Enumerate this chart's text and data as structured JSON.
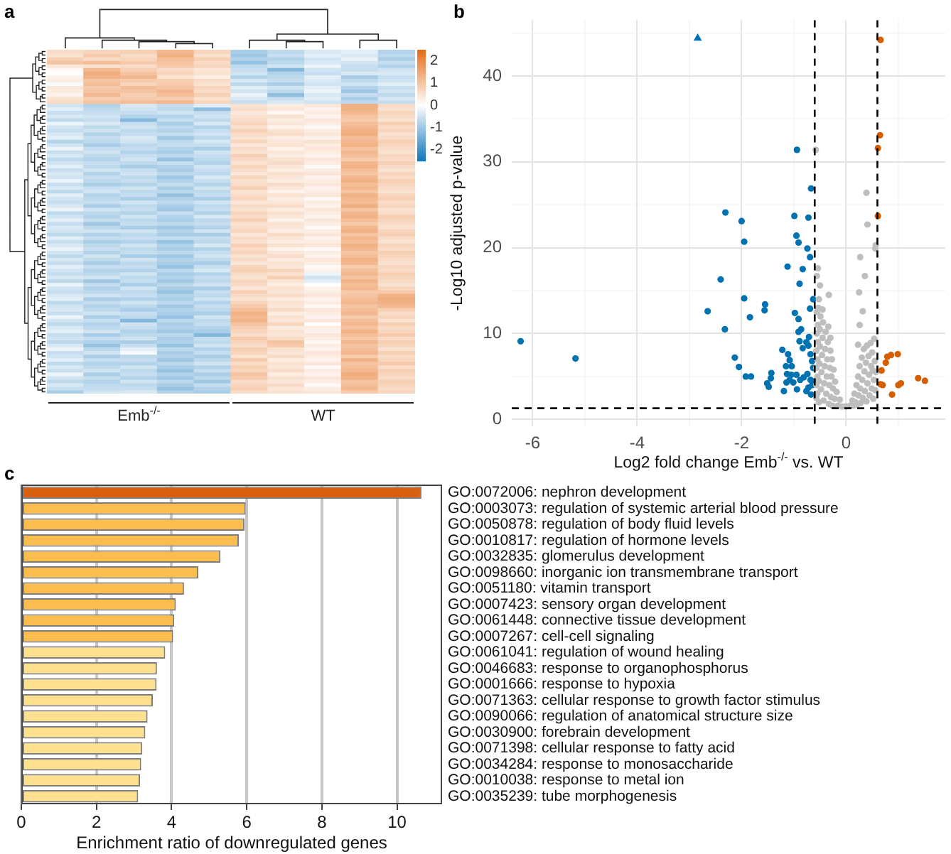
{
  "chart_data": [
    {
      "type": "heatmap",
      "title": "a",
      "categories": [
        null,
        null,
        "Emb$^{-/-}$",
        null,
        null,
        null,
        null,
        "WT",
        null,
        null
      ],
      "y_categories": [
        null,
        null,
        null,
        null,
        null,
        null,
        null,
        null,
        null,
        null,
        null,
        null,
        null,
        null,
        null,
        null,
        null,
        null,
        null,
        null,
        null,
        null,
        null,
        null,
        null,
        null,
        null,
        null,
        null,
        null,
        null,
        null,
        null,
        null,
        null,
        null,
        null,
        null,
        null,
        null,
        null,
        null,
        null,
        null,
        null,
        null,
        null,
        null,
        null,
        null,
        null,
        null,
        null,
        null,
        null,
        null,
        null,
        null,
        null,
        null,
        null,
        null,
        null,
        null,
        null,
        null,
        null,
        null,
        null,
        null,
        null,
        null,
        null,
        null,
        null,
        null,
        null,
        null,
        null,
        null,
        null,
        null,
        null,
        null,
        null,
        null,
        null,
        null,
        null,
        null,
        null,
        null,
        null,
        null,
        null,
        null
      ],
      "clim": [
        -2.5,
        2.5
      ],
      "cticks": [
        -2,
        -1,
        0,
        1,
        2
      ],
      "cells": [
        [
          0.6,
          0.7,
          0.8,
          1.2,
          0.7,
          -0.9,
          -0.7,
          -0.4,
          -0.3,
          -0.8
        ],
        [
          0.5,
          0.9,
          0.6,
          1.3,
          0.5,
          -1.0,
          -0.6,
          -0.3,
          -0.4,
          -0.7
        ],
        [
          0.8,
          0.6,
          0.7,
          1.1,
          0.8,
          -0.8,
          -0.8,
          -0.5,
          -0.2,
          -0.9
        ],
        [
          1.0,
          1.1,
          0.9,
          1.0,
          0.6,
          -1.1,
          -0.7,
          -0.4,
          -0.5,
          -0.6
        ],
        [
          0.4,
          0.5,
          0.6,
          0.9,
          0.7,
          -0.7,
          -0.5,
          -0.2,
          -0.6,
          -0.8
        ],
        [
          0.1,
          1.2,
          0.8,
          0.6,
          0.4,
          -0.6,
          -1.3,
          -0.5,
          -0.6,
          -0.5
        ],
        [
          0.0,
          1.4,
          1.0,
          0.7,
          0.5,
          -0.5,
          -0.8,
          -0.6,
          -0.4,
          -0.4
        ],
        [
          0.2,
          1.3,
          1.2,
          0.5,
          0.3,
          -0.8,
          -0.7,
          -0.3,
          -0.9,
          -0.6
        ],
        [
          0.3,
          1.0,
          0.9,
          0.8,
          0.6,
          -0.4,
          -0.6,
          -0.4,
          -0.7,
          -0.5
        ],
        [
          -0.1,
          1.1,
          0.7,
          0.9,
          0.5,
          -0.7,
          -0.9,
          -0.5,
          -0.5,
          -0.3
        ],
        [
          0.4,
          0.9,
          1.1,
          1.0,
          0.7,
          -0.3,
          -0.5,
          -0.3,
          -0.8,
          -0.6
        ],
        [
          0.3,
          1.0,
          1.0,
          1.2,
          0.6,
          -0.5,
          -0.7,
          -0.2,
          -1.0,
          -0.5
        ],
        [
          0.2,
          1.2,
          0.8,
          1.1,
          0.8,
          -0.2,
          -1.2,
          -0.4,
          -0.6,
          -0.7
        ],
        [
          0.5,
          0.8,
          0.9,
          0.8,
          0.5,
          -0.4,
          -0.6,
          -0.3,
          -0.9,
          -0.4
        ],
        [
          0.6,
          1.0,
          1.1,
          1.2,
          0.7,
          -0.6,
          -0.4,
          -0.5,
          -0.7,
          -0.6
        ],
        [
          -0.5,
          -0.8,
          -0.4,
          -0.6,
          -0.3,
          0.5,
          0.3,
          0.4,
          1.4,
          0.6
        ],
        [
          -0.3,
          -0.7,
          -0.5,
          -0.7,
          -1.2,
          0.6,
          0.4,
          0.2,
          1.3,
          0.5
        ],
        [
          -0.6,
          -0.6,
          -0.6,
          -0.5,
          -0.6,
          0.4,
          0.1,
          0.3,
          1.2,
          0.7
        ],
        [
          -0.4,
          -0.5,
          -0.8,
          -0.8,
          -0.5,
          0.5,
          0.5,
          0.2,
          1.0,
          0.6
        ],
        [
          -0.7,
          -0.6,
          -1.3,
          -0.6,
          -0.7,
          0.6,
          0.3,
          0.4,
          0.9,
          0.5
        ],
        [
          -0.2,
          -0.4,
          -0.6,
          -0.9,
          -0.4,
          0.7,
          0.4,
          0.3,
          1.1,
          0.8
        ],
        [
          -0.5,
          -0.7,
          -0.5,
          -0.7,
          -0.8,
          0.5,
          0.2,
          0.1,
          1.2,
          0.6
        ],
        [
          -0.6,
          -0.5,
          -0.7,
          -0.8,
          -0.6,
          0.8,
          0.5,
          0.3,
          1.3,
          0.7
        ],
        [
          -0.4,
          -0.8,
          -0.6,
          -0.6,
          -0.5,
          0.6,
          0.6,
          0.4,
          1.4,
          0.5
        ],
        [
          -0.3,
          -0.6,
          -0.4,
          -1.0,
          -0.7,
          0.5,
          0.3,
          0.2,
          1.1,
          0.6
        ],
        [
          -0.8,
          -0.7,
          -0.5,
          -0.7,
          -0.4,
          0.7,
          0.4,
          0.5,
          1.2,
          0.8
        ],
        [
          -0.5,
          -0.9,
          -0.7,
          -0.6,
          -0.6,
          0.4,
          0.5,
          0.3,
          1.3,
          0.7
        ],
        [
          -0.2,
          -0.6,
          -0.6,
          -0.8,
          -0.9,
          0.6,
          0.2,
          0.4,
          1.0,
          0.6
        ],
        [
          -0.6,
          -0.5,
          -0.8,
          -0.9,
          -0.5,
          0.5,
          0.4,
          0.3,
          1.2,
          0.5
        ],
        [
          -0.4,
          -0.7,
          -0.6,
          -0.7,
          -0.6,
          0.8,
          0.3,
          0.2,
          1.1,
          0.7
        ],
        [
          -0.7,
          -0.8,
          -0.5,
          -1.1,
          -0.7,
          0.6,
          0.5,
          0.4,
          0.9,
          0.6
        ],
        [
          -0.5,
          -0.6,
          -0.7,
          -0.6,
          -0.8,
          0.5,
          0.6,
          0.3,
          1.2,
          0.8
        ],
        [
          -0.3,
          -0.7,
          -0.9,
          -0.8,
          -0.5,
          0.7,
          0.4,
          0.1,
          1.3,
          0.6
        ],
        [
          -0.6,
          -0.5,
          -0.6,
          -0.9,
          -0.6,
          0.6,
          0.3,
          0.3,
          1.1,
          0.5
        ],
        [
          -0.4,
          -0.8,
          -0.5,
          -0.7,
          -0.7,
          0.4,
          0.5,
          0.4,
          1.0,
          0.7
        ],
        [
          -0.5,
          -0.6,
          -0.7,
          -1.0,
          -0.4,
          0.7,
          0.4,
          0.2,
          1.2,
          0.6
        ],
        [
          -0.2,
          -0.7,
          -0.6,
          -0.8,
          -0.6,
          0.5,
          0.3,
          0.3,
          1.3,
          0.8
        ],
        [
          -0.6,
          -0.9,
          -0.8,
          -0.6,
          -0.8,
          0.6,
          0.6,
          0.4,
          1.1,
          0.7
        ],
        [
          -0.4,
          -0.6,
          -0.5,
          -0.9,
          -0.5,
          0.8,
          0.4,
          0.2,
          1.2,
          0.6
        ],
        [
          -0.7,
          -0.5,
          -0.7,
          -0.7,
          -0.7,
          0.5,
          0.2,
          0.3,
          1.0,
          0.5
        ],
        [
          -0.3,
          -0.8,
          -0.6,
          -1.1,
          -0.6,
          0.6,
          0.5,
          0.4,
          1.3,
          0.7
        ],
        [
          -0.5,
          -0.7,
          -0.9,
          -0.8,
          -0.9,
          0.7,
          0.3,
          0.1,
          1.2,
          0.8
        ],
        [
          -0.6,
          -0.6,
          -0.5,
          -0.7,
          -0.5,
          0.4,
          0.4,
          0.3,
          1.1,
          0.6
        ],
        [
          -0.4,
          -0.9,
          -0.7,
          -0.9,
          -0.7,
          0.6,
          0.6,
          0.2,
          1.4,
          0.7
        ],
        [
          -0.2,
          -0.5,
          -0.6,
          -1.0,
          -0.6,
          0.5,
          0.3,
          0.4,
          1.0,
          0.5
        ],
        [
          -0.7,
          -0.7,
          -0.8,
          -0.6,
          -0.8,
          0.7,
          0.5,
          0.3,
          1.2,
          0.6
        ],
        [
          -0.5,
          -0.8,
          -0.5,
          -0.8,
          -0.4,
          0.6,
          0.4,
          0.2,
          1.3,
          0.8
        ],
        [
          -0.3,
          -0.6,
          -0.7,
          -0.9,
          -0.7,
          0.8,
          0.2,
          0.4,
          1.1,
          0.7
        ],
        [
          -0.6,
          -1.0,
          -0.6,
          -0.7,
          -0.6,
          0.5,
          0.5,
          0.3,
          0.9,
          0.6
        ],
        [
          -0.4,
          -0.7,
          -0.9,
          -1.0,
          -0.8,
          0.6,
          0.4,
          0.1,
          1.2,
          0.5
        ],
        [
          -0.5,
          -0.5,
          -0.5,
          -0.8,
          -0.5,
          0.7,
          0.3,
          0.3,
          1.3,
          0.7
        ],
        [
          -0.7,
          -0.8,
          -0.7,
          -0.9,
          -0.9,
          0.4,
          0.6,
          0.4,
          1.0,
          0.8
        ],
        [
          -0.3,
          -0.6,
          -0.6,
          -0.6,
          -0.6,
          0.6,
          0.4,
          0.2,
          1.2,
          0.6
        ],
        [
          -0.6,
          -0.9,
          -0.8,
          -1.1,
          -0.7,
          0.5,
          0.3,
          0.3,
          1.1,
          0.5
        ],
        [
          -0.4,
          -0.7,
          -0.5,
          -0.8,
          -0.4,
          0.8,
          0.5,
          0.4,
          1.3,
          0.7
        ],
        [
          -0.2,
          -0.6,
          -0.7,
          -0.9,
          -0.8,
          0.6,
          0.2,
          0.1,
          1.2,
          0.6
        ],
        [
          -0.5,
          -0.8,
          -0.6,
          -0.7,
          -0.6,
          0.7,
          0.4,
          0.3,
          1.0,
          0.8
        ],
        [
          -0.7,
          -0.5,
          -0.9,
          -1.0,
          -0.5,
          0.5,
          0.6,
          0.2,
          1.1,
          0.7
        ],
        [
          -0.4,
          -0.7,
          -0.5,
          -0.8,
          -0.7,
          0.6,
          0.3,
          0.4,
          1.3,
          0.6
        ],
        [
          -0.6,
          -0.9,
          -0.7,
          -0.9,
          -0.9,
          0.4,
          0.5,
          0.3,
          1.2,
          0.5
        ],
        [
          -0.3,
          -0.6,
          -0.6,
          -1.1,
          -0.6,
          0.7,
          0.4,
          0.1,
          0.9,
          0.7
        ],
        [
          -0.5,
          -0.8,
          -0.8,
          -0.7,
          -0.4,
          0.8,
          0.7,
          0.2,
          1.1,
          0.6
        ],
        [
          -0.6,
          -0.7,
          -0.5,
          -0.9,
          -0.8,
          0.6,
          0.5,
          -0.2,
          1.2,
          0.8
        ],
        [
          -0.4,
          -0.5,
          -0.7,
          -0.8,
          -0.6,
          0.5,
          0.8,
          -0.5,
          1.0,
          0.7
        ],
        [
          -0.7,
          -1.0,
          -0.6,
          -1.0,
          -0.7,
          0.7,
          0.4,
          -0.3,
          1.3,
          0.6
        ],
        [
          -0.2,
          -0.6,
          -0.9,
          -0.7,
          -0.5,
          0.6,
          0.3,
          0.0,
          1.1,
          0.5
        ],
        [
          -0.5,
          -0.8,
          -0.5,
          -0.9,
          -0.9,
          0.4,
          0.5,
          0.2,
          1.2,
          0.7
        ],
        [
          -0.6,
          -0.7,
          -0.7,
          -1.1,
          -0.6,
          0.8,
          0.4,
          0.3,
          0.9,
          0.9
        ],
        [
          -0.4,
          -0.5,
          -0.6,
          -0.8,
          -0.7,
          0.6,
          0.6,
          0.4,
          1.0,
          1.3
        ],
        [
          -0.3,
          -0.9,
          -0.8,
          -0.9,
          -0.5,
          0.5,
          0.3,
          0.2,
          1.1,
          1.4
        ],
        [
          -0.7,
          -0.6,
          -0.5,
          -0.7,
          -0.8,
          0.7,
          0.5,
          0.3,
          1.2,
          1.3
        ],
        [
          -0.5,
          -0.8,
          -0.7,
          -1.0,
          -0.6,
          0.9,
          0.4,
          0.1,
          1.0,
          1.2
        ],
        [
          -0.4,
          -0.7,
          -0.9,
          -0.8,
          -0.7,
          1.1,
          0.6,
          0.4,
          1.1,
          0.8
        ],
        [
          -0.6,
          -0.5,
          -0.6,
          -0.9,
          -0.9,
          1.3,
          0.3,
          0.3,
          1.2,
          0.6
        ],
        [
          -0.2,
          -0.9,
          -0.7,
          -1.1,
          -0.5,
          1.2,
          0.5,
          0.2,
          0.9,
          0.7
        ],
        [
          -0.5,
          -0.6,
          -1.3,
          -0.7,
          -0.7,
          1.3,
          0.4,
          0.4,
          1.1,
          0.5
        ],
        [
          -0.7,
          -0.8,
          -0.5,
          -0.9,
          -0.6,
          1.0,
          0.7,
          0.0,
          1.2,
          0.8
        ],
        [
          -0.4,
          -0.7,
          -0.6,
          -0.8,
          -0.8,
          0.8,
          0.3,
          0.3,
          1.0,
          0.6
        ],
        [
          -0.3,
          -0.5,
          -0.8,
          -1.0,
          -0.9,
          0.7,
          0.5,
          0.2,
          1.3,
          0.7
        ],
        [
          -0.6,
          -0.9,
          -0.7,
          -0.7,
          -1.3,
          0.6,
          0.4,
          0.4,
          1.1,
          0.9
        ],
        [
          -0.5,
          -0.6,
          -0.5,
          -0.9,
          -0.6,
          0.9,
          0.6,
          0.3,
          0.9,
          0.6
        ],
        [
          -0.7,
          -0.8,
          -0.9,
          -0.8,
          -0.7,
          0.7,
          1.0,
          0.1,
          1.2,
          0.8
        ],
        [
          -0.4,
          -1.1,
          -0.6,
          -1.1,
          -0.5,
          0.6,
          0.9,
          0.3,
          1.0,
          0.7
        ],
        [
          -0.2,
          -0.7,
          -0.3,
          -0.7,
          -0.8,
          0.8,
          0.5,
          0.2,
          1.1,
          0.5
        ],
        [
          -0.6,
          -0.5,
          -0.1,
          -0.9,
          -0.6,
          0.7,
          0.4,
          0.4,
          1.2,
          0.8
        ],
        [
          -0.5,
          -0.9,
          -0.7,
          -0.8,
          -0.9,
          0.5,
          0.6,
          0.3,
          0.9,
          0.6
        ],
        [
          -0.3,
          -0.6,
          -0.6,
          -1.0,
          -0.7,
          0.9,
          0.3,
          0.2,
          1.3,
          0.7
        ],
        [
          -0.7,
          -0.8,
          -0.8,
          -0.7,
          -0.5,
          0.6,
          0.5,
          0.4,
          1.0,
          0.9
        ],
        [
          -0.4,
          -0.7,
          -0.5,
          -0.9,
          -0.8,
          0.8,
          0.4,
          0.1,
          1.1,
          0.6
        ],
        [
          -0.6,
          -0.5,
          -0.7,
          -1.1,
          -0.6,
          0.7,
          0.6,
          0.3,
          1.2,
          0.8
        ],
        [
          -0.2,
          -0.9,
          -0.6,
          -0.8,
          -0.9,
          1.0,
          0.3,
          0.2,
          1.4,
          0.7
        ],
        [
          -0.5,
          -0.6,
          -0.8,
          -1.0,
          -0.7,
          0.9,
          0.5,
          0.4,
          1.3,
          0.6
        ],
        [
          -0.7,
          -0.8,
          -0.5,
          -0.7,
          -1.0,
          0.6,
          0.4,
          0.3,
          1.0,
          0.8
        ],
        [
          -0.4,
          -0.7,
          -0.7,
          -0.9,
          -0.6,
          0.7,
          0.6,
          0.1,
          1.1,
          0.7
        ],
        [
          -0.6,
          -0.6,
          -0.6,
          -1.1,
          -0.8,
          0.8,
          0.4,
          0.3,
          1.2,
          0.6
        ],
        [
          -0.9,
          -0.5,
          -0.4,
          -0.8,
          -0.9,
          0.6,
          0.5,
          0.4,
          0.9,
          0.7
        ]
      ]
    },
    {
      "type": "scatter",
      "title": "b",
      "xlabel": "Log2 fold change Emb$^{-/-}$ vs. WT",
      "ylabel": "-Log10 adjusted p-value",
      "xlim": [
        -6.4,
        1.9
      ],
      "ylim": [
        -0.8,
        46.5
      ],
      "xticks": [
        -6,
        {
          "value": -5,
          "label": null
        },
        -4,
        {
          "value": -3,
          "label": null
        },
        -2,
        {
          "value": -1,
          "label": null
        },
        0,
        {
          "value": 1,
          "label": null
        }
      ],
      "yticks": [
        0,
        {
          "value": 5,
          "label": null
        },
        10,
        {
          "value": 15,
          "label": null
        },
        20,
        {
          "value": 25,
          "label": null
        },
        30,
        {
          "value": 35,
          "label": null
        },
        40,
        {
          "value": 45,
          "label": null
        }
      ],
      "grid": true,
      "marker": "circle",
      "ref_lines": [
        {
          "axis": "x",
          "value": -0.6,
          "line_style": "dashed"
        },
        {
          "axis": "x",
          "value": 0.6,
          "line_style": "dashed"
        },
        {
          "axis": "y",
          "value": 1.3,
          "line_style": "dashed"
        }
      ],
      "series": [
        {
          "color": "#bebebe",
          "x": [
            -0.57,
            -0.57,
            -0.57,
            -0.57,
            -0.56,
            -0.56,
            -0.55,
            -0.55,
            -0.55,
            -0.54,
            -0.54,
            -0.53,
            -0.52,
            -0.52,
            -0.51,
            -0.5,
            -0.5,
            -0.49,
            -0.48,
            -0.47,
            -0.46,
            -0.45,
            -0.44,
            -0.43,
            -0.42,
            -0.41,
            -0.4,
            -0.39,
            -0.38,
            -0.37,
            -0.36,
            -0.35,
            -0.34,
            -0.33,
            -0.32,
            -0.31,
            -0.3,
            -0.29,
            -0.28,
            -0.27,
            -0.26,
            -0.25,
            -0.24,
            -0.22,
            -0.21,
            -0.18,
            -0.16,
            -0.12,
            -0.08,
            0,
            0.08,
            -0.58,
            -0.54,
            -0.56,
            -0.5,
            -0.33,
            -0.52,
            -0.45,
            -0.3,
            0.12,
            0.14,
            0.16,
            0.18,
            0.2,
            0.21,
            0.23,
            0.24,
            0.26,
            0.27,
            0.28,
            0.3,
            0.31,
            0.32,
            0.34,
            0.35,
            0.36,
            0.38,
            0.39,
            0.4,
            0.41,
            0.43,
            0.44,
            0.45,
            0.47,
            0.48,
            0.49,
            0.5,
            0.51,
            0.52,
            0.53,
            0.54,
            0.55,
            0.56,
            0.57,
            0.39,
            0.41,
            0.27,
            0.36,
            0.25,
            0.32,
            0.56,
            0.26,
            0.23,
            0.57
          ],
          "values": [
            2.5,
            4,
            6,
            8,
            10,
            12.5,
            3,
            5,
            7,
            9,
            11,
            13,
            2,
            4.5,
            6.5,
            8.5,
            10.5,
            12,
            3.5,
            5.5,
            7.5,
            9.5,
            11.3,
            2.2,
            4.2,
            6.2,
            8.2,
            10.2,
            3,
            5,
            7,
            9,
            10.8,
            1.8,
            4,
            6,
            8,
            2.6,
            5,
            7,
            1.6,
            3.6,
            5.8,
            2.4,
            4.4,
            3.2,
            1.6,
            2.3,
            1.5,
            1.5,
            1.6,
            31.4,
            17.6,
            16.7,
            15.6,
            14.5,
            14,
            12.8,
            9.5,
            2.2,
            1.6,
            3,
            2,
            4,
            1.7,
            5,
            2.8,
            6.2,
            3.6,
            1.9,
            7.2,
            4.6,
            2.5,
            8.2,
            5.6,
            3.3,
            6.6,
            2.1,
            8.6,
            4.2,
            7.4,
            5.2,
            2.8,
            8.9,
            6.2,
            3.6,
            7.8,
            5.7,
            2.4,
            4.6,
            9.4,
            6.8,
            3.4,
            5.5,
            26.4,
            22.7,
            18.9,
            16.7,
            14.8,
            12.6,
            19.9,
            11,
            8.7,
            20.3
          ]
        },
        {
          "color": "#0072b2",
          "x": [
            -6.23,
            -5.18,
            -2.31,
            -2,
            -1.95,
            -2.4,
            -2.65,
            -2.32,
            -1.95,
            -1.84,
            -1.55,
            -1.56,
            -2.13,
            -2.05,
            -1.92,
            -1.82,
            -1.51,
            -1.48,
            -1.43,
            -1.44,
            -1.19,
            -1.22,
            -1.12,
            -0.99,
            -0.95,
            -0.91,
            -0.94,
            -0.67,
            -0.72,
            -0.74,
            -0.69,
            -0.83,
            -0.89,
            -0.63,
            -0.98,
            -0.91,
            -0.86,
            -0.91,
            -0.69,
            -0.71,
            -0.89,
            -0.83,
            -0.76,
            -0.72,
            -0.68,
            -1.11,
            -1.08,
            -1.15,
            -1.04,
            -1.13,
            -1.05,
            -1.08,
            -1.14,
            -0.95,
            -0.88,
            -0.81,
            -0.74,
            -0.68,
            -0.65,
            -0.72,
            -0.76,
            -0.67,
            -0.63,
            -0.65,
            -0.62,
            -1.01,
            -0.94
          ],
          "values": [
            9.1,
            7.1,
            24.1,
            23.1,
            20.7,
            16.3,
            12.6,
            10.5,
            14.1,
            11.9,
            13.4,
            12.7,
            7.2,
            6.1,
            5,
            5,
            4.2,
            3.8,
            5.4,
            4.8,
            3.3,
            8.1,
            17.8,
            23.7,
            21.4,
            20.6,
            31.4,
            26.9,
            23.5,
            19.9,
            18.9,
            17.5,
            15.8,
            14,
            12.4,
            11.7,
            10.5,
            10.2,
            12.9,
            9.6,
            9.1,
            8.3,
            9,
            8.6,
            7.6,
            7.6,
            6.9,
            6.2,
            6.2,
            5.3,
            5.2,
            4.6,
            4.3,
            5.2,
            4.6,
            4.9,
            5.3,
            4.6,
            4,
            3.7,
            3.3,
            2.9,
            6,
            6.8,
            4.4,
            4.3,
            3.5
          ]
        },
        {
          "color": "#d55e00",
          "x": [
            0.66,
            0.65,
            0.61,
            0.61,
            0.68,
            0.66,
            0.7,
            0.76,
            0.79,
            0.86,
            0.99,
            0.88,
            1,
            1.05,
            1.38,
            1.51
          ],
          "values": [
            44.2,
            33.1,
            31.6,
            23.7,
            5.7,
            4.1,
            4,
            6.6,
            7.3,
            7.5,
            7.6,
            2.9,
            4,
            4.2,
            4.8,
            4.5
          ]
        },
        {
          "color": "#0072b2",
          "marker": "triangle",
          "x": [
            -2.84
          ],
          "values": [
            44.4
          ]
        }
      ]
    },
    {
      "type": "bar",
      "title": "c",
      "orientation": "horizontal",
      "xlabel": "Enrichment ratio of downregulated genes",
      "xlim": [
        0,
        11.2
      ],
      "xticks": [
        0,
        2,
        4,
        6,
        8,
        10
      ],
      "grid": "x",
      "categories": [
        "GO:0072006: nephron development",
        "GO:0003073: regulation of systemic arterial blood pressure",
        "GO:0050878: regulation of body fluid levels",
        "GO:0010817: regulation of hormone levels",
        "GO:0032835: glomerulus development",
        "GO:0098660: inorganic ion transmembrane transport",
        "GO:0051180: vitamin transport",
        "GO:0007423: sensory organ development",
        "GO:0061448: connective tissue development",
        "GO:0007267: cell-cell signaling",
        "GO:0061041: regulation of wound healing",
        "GO:0046683: response to organophosphorus",
        "GO:0001666: response to hypoxia",
        "GO:0071363: cellular response to growth factor stimulus",
        "GO:0090066: regulation of anatomical structure size",
        "GO:0030900: forebrain development",
        "GO:0071398: cellular response to fatty acid",
        "GO:0034284: response to monosaccharide",
        "GO:0010038: response to metal ion",
        "GO:0035239: tube morphogenesis"
      ],
      "values": [
        10.65,
        5.97,
        5.94,
        5.79,
        5.3,
        4.71,
        4.33,
        4.11,
        4.07,
        4.04,
        3.83,
        3.61,
        3.6,
        3.5,
        3.36,
        3.3,
        3.22,
        3.19,
        3.16,
        3.11
      ],
      "colors": [
        "#d9600e",
        "#fbbd4e",
        "#fbbd4e",
        "#fbbd4e",
        "#fbbd4e",
        "#fbbd4e",
        "#fbbd4e",
        "#fbbd4e",
        "#fbbd4e",
        "#fbbd4e",
        "#fde090",
        "#fde090",
        "#fde090",
        "#fde090",
        "#fde090",
        "#fde090",
        "#fde090",
        "#fde090",
        "#fde090",
        "#fde090"
      ]
    }
  ]
}
